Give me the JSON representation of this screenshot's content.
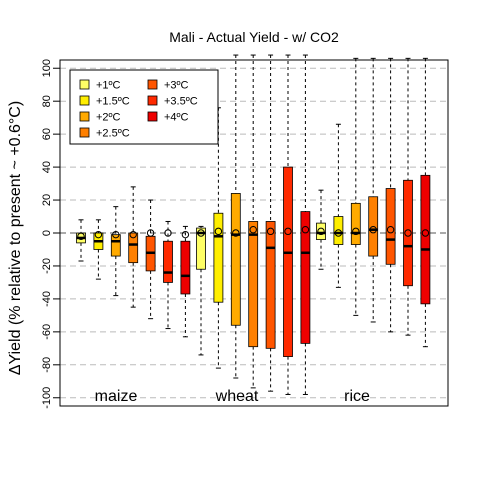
{
  "chart_data": {
    "type": "box",
    "title": "Mali - Actual Yield - w/ CO2",
    "ylabel": "ΔYield (% relative to present ~ +0.6°C)",
    "xlabel": "",
    "ylim": [
      -105,
      105
    ],
    "yticks": [
      -100,
      -80,
      -60,
      -40,
      -20,
      0,
      20,
      40,
      60,
      80,
      100
    ],
    "grid": true,
    "legend_position": "top-left",
    "groups": [
      "maize",
      "wheat",
      "rice"
    ],
    "series": [
      {
        "name": "+1ºC",
        "color": "#ffff66"
      },
      {
        "name": "+1.5ºC",
        "color": "#ffee00"
      },
      {
        "name": "+2ºC",
        "color": "#ffaa00"
      },
      {
        "name": "+2.5ºC",
        "color": "#ff8000"
      },
      {
        "name": "+3ºC",
        "color": "#ff5500"
      },
      {
        "name": "+3.5ºC",
        "color": "#ff2a00"
      },
      {
        "name": "+4ºC",
        "color": "#ee0000"
      }
    ],
    "boxes": [
      {
        "group": "maize",
        "series": 0,
        "min": -17,
        "q1": -6,
        "median": -3,
        "q3": 0,
        "max": 8,
        "mean": -2
      },
      {
        "group": "maize",
        "series": 1,
        "min": -28,
        "q1": -10,
        "median": -5,
        "q3": 0,
        "max": 8,
        "mean": -1
      },
      {
        "group": "maize",
        "series": 2,
        "min": -38,
        "q1": -14,
        "median": -5,
        "q3": -1,
        "max": 16,
        "mean": -1
      },
      {
        "group": "maize",
        "series": 3,
        "min": -45,
        "q1": -18,
        "median": -7,
        "q3": 0,
        "max": 28,
        "mean": -1
      },
      {
        "group": "maize",
        "series": 4,
        "min": -52,
        "q1": -23,
        "median": -12,
        "q3": -2,
        "max": 20,
        "mean": 0
      },
      {
        "group": "maize",
        "series": 5,
        "min": -58,
        "q1": -30,
        "median": -24,
        "q3": -5,
        "max": 7,
        "mean": 0
      },
      {
        "group": "maize",
        "series": 6,
        "min": -63,
        "q1": -37,
        "median": -26,
        "q3": -5,
        "max": 4,
        "mean": -1
      },
      {
        "group": "wheat",
        "series": 0,
        "min": -74,
        "q1": -22,
        "median": 0,
        "q3": 3,
        "max": 4,
        "mean": 0
      },
      {
        "group": "wheat",
        "series": 1,
        "min": -82,
        "q1": -42,
        "median": -2,
        "q3": 12,
        "max": 76,
        "mean": 1
      },
      {
        "group": "wheat",
        "series": 2,
        "min": -88,
        "q1": -56,
        "median": -1,
        "q3": 24,
        "max": 108,
        "mean": 0
      },
      {
        "group": "wheat",
        "series": 3,
        "min": -94,
        "q1": -69,
        "median": -1,
        "q3": 7,
        "max": 108,
        "mean": 2
      },
      {
        "group": "wheat",
        "series": 4,
        "min": -96,
        "q1": -70,
        "median": -9,
        "q3": 7,
        "max": 108,
        "mean": 1
      },
      {
        "group": "wheat",
        "series": 5,
        "min": -98,
        "q1": -75,
        "median": -12,
        "q3": 40,
        "max": 108,
        "mean": 1
      },
      {
        "group": "wheat",
        "series": 6,
        "min": -98,
        "q1": -67,
        "median": -12,
        "q3": 13,
        "max": 108,
        "mean": 2
      },
      {
        "group": "rice",
        "series": 0,
        "min": -22,
        "q1": -4,
        "median": 0,
        "q3": 6,
        "max": 26,
        "mean": 1
      },
      {
        "group": "rice",
        "series": 1,
        "min": -33,
        "q1": -7,
        "median": 0,
        "q3": 10,
        "max": 66,
        "mean": 0
      },
      {
        "group": "rice",
        "series": 2,
        "min": -50,
        "q1": -7,
        "median": 0,
        "q3": 18,
        "max": 106,
        "mean": 1
      },
      {
        "group": "rice",
        "series": 3,
        "min": -54,
        "q1": -14,
        "median": 2,
        "q3": 22,
        "max": 106,
        "mean": 2
      },
      {
        "group": "rice",
        "series": 4,
        "min": -60,
        "q1": -19,
        "median": -4,
        "q3": 27,
        "max": 106,
        "mean": 2
      },
      {
        "group": "rice",
        "series": 5,
        "min": -62,
        "q1": -32,
        "median": -8,
        "q3": 32,
        "max": 106,
        "mean": 0
      },
      {
        "group": "rice",
        "series": 6,
        "min": -69,
        "q1": -43,
        "median": -10,
        "q3": 35,
        "max": 106,
        "mean": 0
      }
    ]
  }
}
